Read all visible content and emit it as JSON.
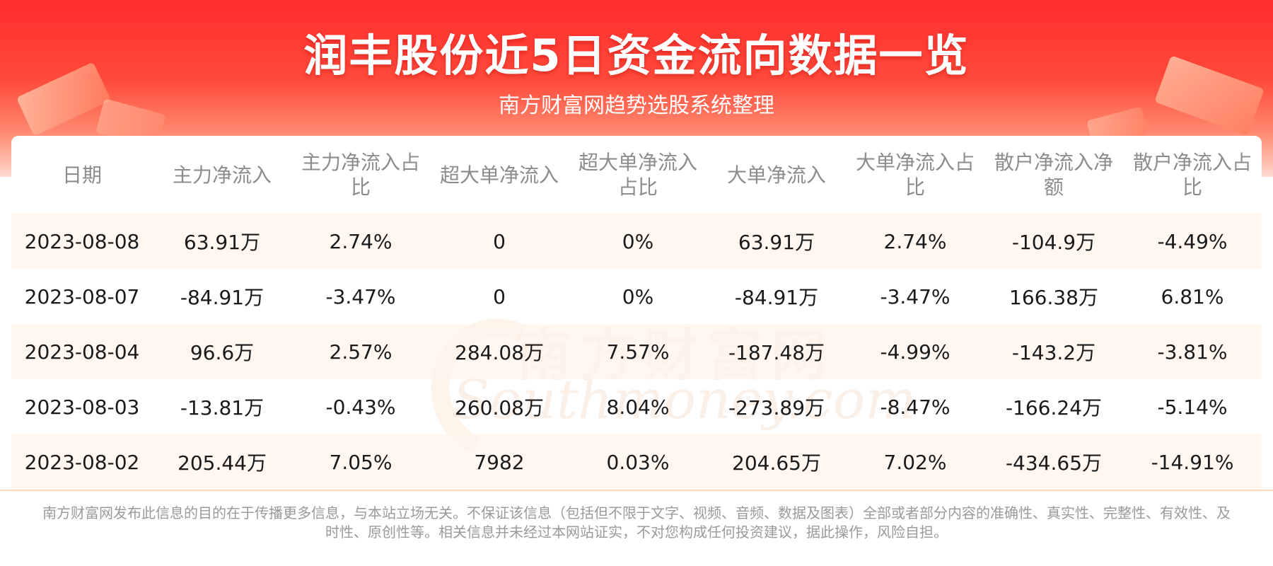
{
  "header": {
    "title": "润丰股份近5日资金流向数据一览",
    "subtitle": "南方财富网趋势选股系统整理"
  },
  "watermark": {
    "cn": "南方财富网",
    "en": "Southmoney.com"
  },
  "table": {
    "columns": [
      "日期",
      "主力净流入",
      "主力净流入占比",
      "超大单净流入",
      "超大单净流入占比",
      "大单净流入",
      "大单净流入占比",
      "散户净流入净额",
      "散户净流入占比"
    ],
    "rows": [
      [
        "2023-08-08",
        "63.91万",
        "2.74%",
        "0",
        "0%",
        "63.91万",
        "2.74%",
        "-104.9万",
        "-4.49%"
      ],
      [
        "2023-08-07",
        "-84.91万",
        "-3.47%",
        "0",
        "0%",
        "-84.91万",
        "-3.47%",
        "166.38万",
        "6.81%"
      ],
      [
        "2023-08-04",
        "96.6万",
        "2.57%",
        "284.08万",
        "7.57%",
        "-187.48万",
        "-4.99%",
        "-143.2万",
        "-3.81%"
      ],
      [
        "2023-08-03",
        "-13.81万",
        "-0.43%",
        "260.08万",
        "8.04%",
        "-273.89万",
        "-8.47%",
        "-166.24万",
        "-5.14%"
      ],
      [
        "2023-08-02",
        "205.44万",
        "7.05%",
        "7982",
        "0.03%",
        "204.65万",
        "7.02%",
        "-434.65万",
        "-14.91%"
      ]
    ]
  },
  "footer": {
    "disclaimer": "南方财富网发布此信息的目的在于传播更多信息，与本站立场无关。不保证该信息（包括但不限于文字、视频、音频、数据及图表）全部或者部分内容的准确性、真实性、完整性、有效性、及时性、原创性等。相关信息并未经过本网站证实，不对您构成任何投资建议，据此操作，风险自担。"
  },
  "colors": {
    "banner_red": "#ff2d2d",
    "row_stripe": "#fff4eb",
    "header_text": "#8c8c8c"
  }
}
